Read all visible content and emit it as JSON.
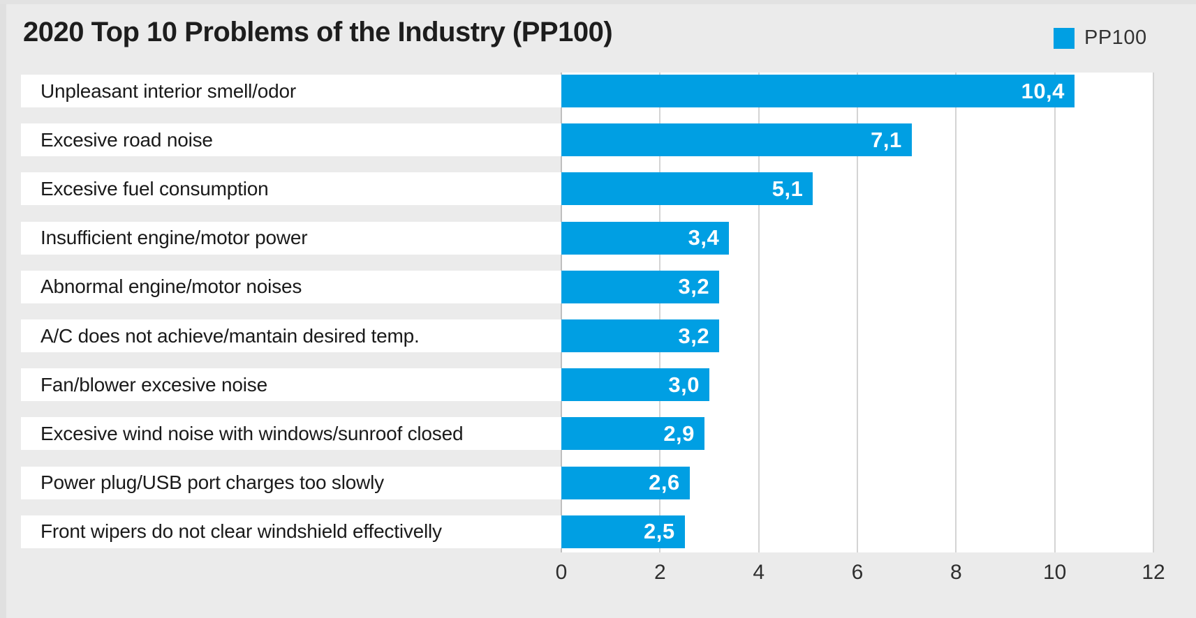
{
  "chart_data": {
    "type": "bar",
    "orientation": "horizontal",
    "title": "2020 Top 10 Problems of the Industry (PP100)",
    "legend": [
      "PP100"
    ],
    "legend_position": "top-right",
    "categories": [
      "Unpleasant interior smell/odor",
      "Excesive road noise",
      "Excesive fuel consumption",
      "Insufficient engine/motor power",
      "Abnormal engine/motor noises",
      "A/C does not achieve/mantain desired temp.",
      "Fan/blower excesive noise",
      "Excesive wind noise with windows/sunroof closed",
      "Power plug/USB port charges too slowly",
      "Front wipers do not clear windshield effectivelly"
    ],
    "values": [
      10.4,
      7.1,
      5.1,
      3.4,
      3.2,
      3.2,
      3.0,
      2.9,
      2.6,
      2.5
    ],
    "value_labels": [
      "10,4",
      "7,1",
      "5,1",
      "3,4",
      "3,2",
      "3,2",
      "3,0",
      "2,9",
      "2,6",
      "2,5"
    ],
    "decimal_separator": ",",
    "xlabel": "",
    "ylabel": "",
    "xlim": [
      0,
      12
    ],
    "xticks": [
      0,
      2,
      4,
      6,
      8,
      10,
      12
    ],
    "xtick_labels": [
      "0",
      "2",
      "4",
      "6",
      "8",
      "10",
      "12"
    ],
    "grid": true
  },
  "colors": {
    "background": "#EBEBEB",
    "plot_background": "#FFFFFF",
    "bar": "#009FE3",
    "gridline": "#D4D4D4",
    "zero_line": "#BFBFBF",
    "title_text": "#1D1D1D",
    "category_text": "#1A1A1A",
    "value_text": "#FFFFFF",
    "tick_text": "#2E2E2E"
  }
}
